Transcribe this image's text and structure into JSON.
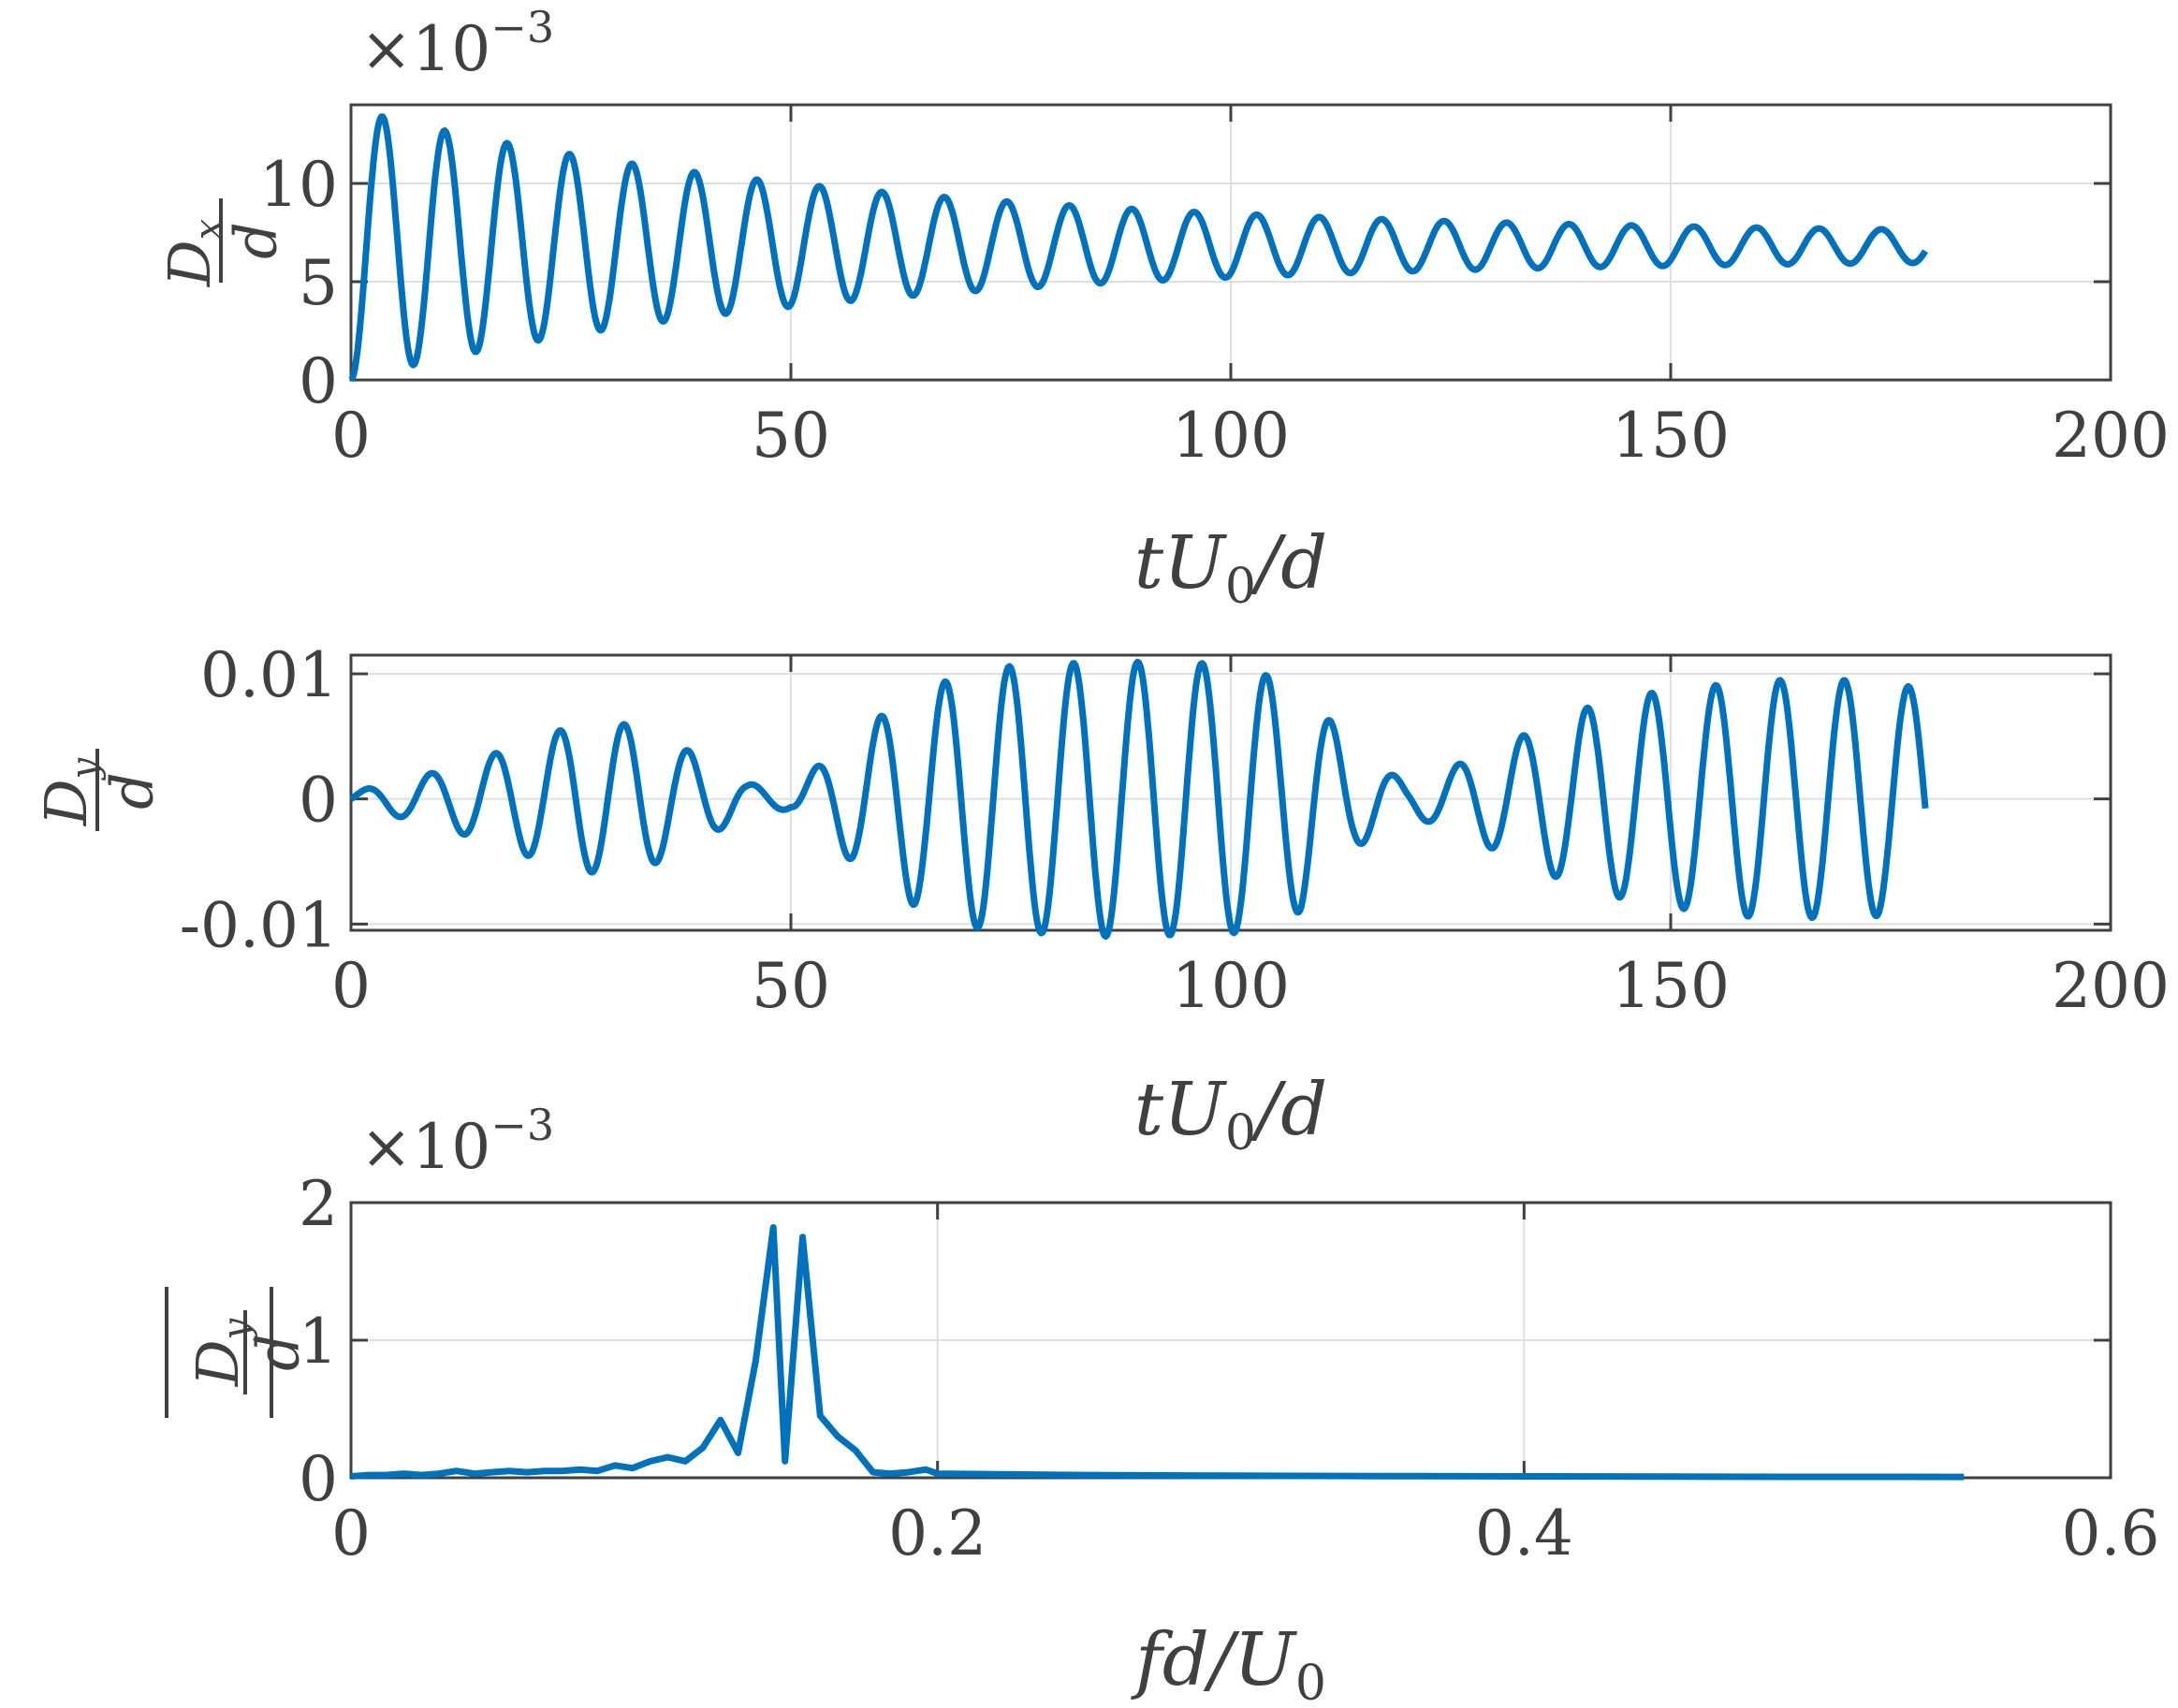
{
  "colors": {
    "line": "#0072BD",
    "axis": "#404040",
    "grid": "#dfdfdf"
  },
  "chart_data": [
    {
      "type": "line",
      "xlabel": "tU0/d",
      "ylabel": "Dx/d",
      "exponent": "×10^-3",
      "xlim": [
        0,
        200
      ],
      "ylim": [
        0,
        14
      ],
      "xticks": [
        "0",
        "50",
        "100",
        "150",
        "200"
      ],
      "yticks": [
        "0",
        "5",
        "10"
      ],
      "x_end": 179,
      "series": [
        {
          "period": 7.1,
          "initial_amplitude": 6.9,
          "mean_start": 6.9,
          "mean_end": 6.8,
          "final_amplitude": 0.6
        }
      ]
    },
    {
      "type": "line",
      "xlabel": "tU0/d",
      "ylabel": "Dy/d",
      "xlim": [
        0,
        200
      ],
      "ylim": [
        -0.0105,
        0.0115
      ],
      "xticks": [
        "0",
        "50",
        "100",
        "150",
        "200"
      ],
      "yticks": [
        "0.01",
        "0",
        "-0.01"
      ],
      "x_end": 179,
      "series": [
        {
          "period": 7.3,
          "envelope": [
            [
              0,
              0.0005
            ],
            [
              10,
              0.0022
            ],
            [
              18,
              0.004
            ],
            [
              25,
              0.0058
            ],
            [
              32,
              0.006
            ],
            [
              38,
              0.004
            ],
            [
              45,
              0.0012
            ],
            [
              50,
              0.0008
            ],
            [
              57,
              0.005
            ],
            [
              64,
              0.0085
            ],
            [
              72,
              0.0105
            ],
            [
              86,
              0.011
            ],
            [
              100,
              0.0108
            ],
            [
              108,
              0.009
            ],
            [
              114,
              0.004
            ],
            [
              120,
              0.0012
            ],
            [
              125,
              0.0025
            ],
            [
              133,
              0.005
            ],
            [
              140,
              0.0072
            ],
            [
              148,
              0.0085
            ],
            [
              160,
              0.0095
            ],
            [
              172,
              0.0095
            ],
            [
              179,
              0.0088
            ]
          ]
        }
      ]
    },
    {
      "type": "line",
      "xlabel": "fd/U0",
      "ylabel": "|Dy/d|",
      "exponent": "×10^-3",
      "xlim": [
        0,
        0.6
      ],
      "ylim": [
        0,
        2
      ],
      "xticks": [
        "0",
        "0.2",
        "0.4",
        "0.6"
      ],
      "yticks": [
        "0",
        "1",
        "2"
      ],
      "series": [
        {
          "x": [
            0,
            0.006,
            0.012,
            0.018,
            0.024,
            0.03,
            0.036,
            0.042,
            0.048,
            0.054,
            0.06,
            0.066,
            0.072,
            0.078,
            0.084,
            0.09,
            0.096,
            0.102,
            0.108,
            0.114,
            0.12,
            0.126,
            0.132,
            0.138,
            0.144,
            0.148,
            0.154,
            0.16,
            0.166,
            0.172,
            0.178,
            0.184,
            0.19,
            0.196,
            0.2,
            0.25,
            0.3,
            0.35,
            0.4,
            0.45,
            0.5,
            0.55
          ],
          "y": [
            0.01,
            0.02,
            0.02,
            0.03,
            0.02,
            0.03,
            0.05,
            0.03,
            0.04,
            0.05,
            0.04,
            0.05,
            0.05,
            0.06,
            0.05,
            0.09,
            0.07,
            0.12,
            0.15,
            0.12,
            0.22,
            0.42,
            0.18,
            0.85,
            1.82,
            0.12,
            1.75,
            0.45,
            0.3,
            0.2,
            0.04,
            0.03,
            0.04,
            0.06,
            0.03,
            0.02,
            0.015,
            0.012,
            0.01,
            0.008,
            0.007,
            0.006
          ]
        }
      ]
    }
  ]
}
